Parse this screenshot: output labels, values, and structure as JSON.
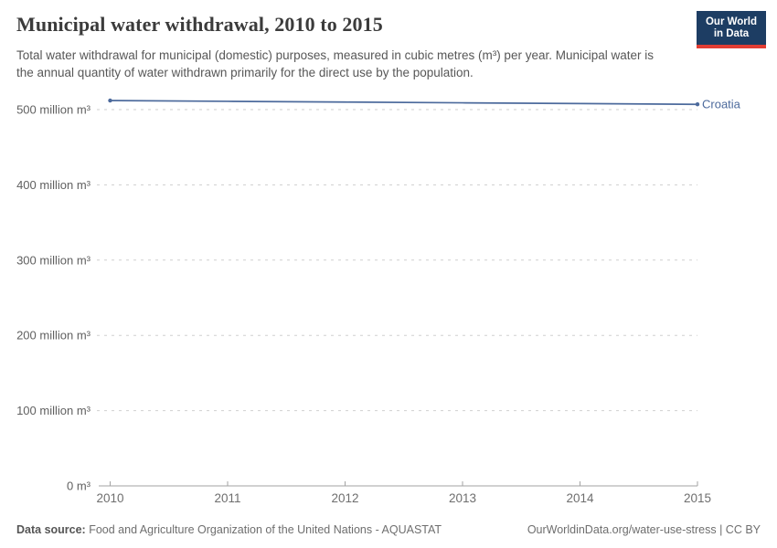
{
  "header": {
    "title": "Municipal water withdrawal, 2010 to 2015",
    "subtitle": "Total water withdrawal for municipal (domestic) purposes, measured in cubic metres (m³) per year. Municipal water is the annual quantity of water withdrawn primarily for the direct use by the population.",
    "logo": {
      "line1": "Our World",
      "line2": "in Data"
    }
  },
  "footer": {
    "datasource_label": "Data source:",
    "datasource_value": " Food and Agriculture Organization of the United Nations - AQUASTAT",
    "link": "OurWorldinData.org/water-use-stress | CC BY"
  },
  "chart_data": {
    "type": "line",
    "title": "Municipal water withdrawal, 2010 to 2015",
    "x": [
      2010,
      2011,
      2012,
      2013,
      2014,
      2015
    ],
    "x_tick_labels": [
      "2010",
      "2011",
      "2012",
      "2013",
      "2014",
      "2015"
    ],
    "series": [
      {
        "name": "Croatia",
        "values": [
          512,
          511,
          510,
          509,
          508,
          507
        ],
        "unit": "million m³",
        "color": "#4C6A9C"
      }
    ],
    "y_ticks": [
      0,
      100,
      200,
      300,
      400,
      500
    ],
    "y_tick_labels": [
      "0 m³",
      "100 million m³",
      "200 million m³",
      "300 million m³",
      "400 million m³",
      "500 million m³"
    ],
    "ylim": [
      0,
      540
    ],
    "xlabel": "",
    "ylabel": "",
    "grid": "horizontal-dashed",
    "legend_position": "end-of-line-label"
  },
  "colors": {
    "series_line": "#4C6A9C",
    "gridline": "#cfcfcf",
    "axis": "#a3a3a3",
    "y_tick_text": "#606060",
    "x_tick_text": "#6e6e6e",
    "title_text": "#3b3b3b",
    "subtitle_text": "#575757",
    "logo_bg": "#1d3d63",
    "logo_accent": "#e23d33"
  }
}
